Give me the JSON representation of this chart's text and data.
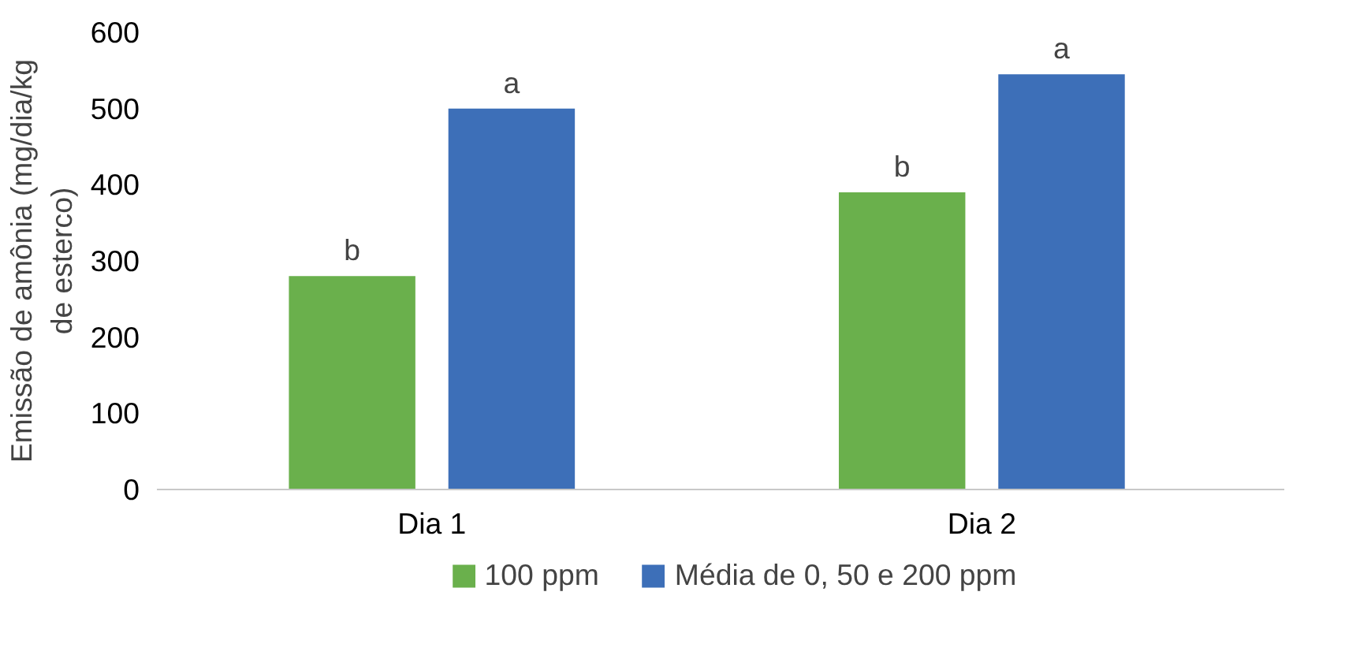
{
  "chart_data": {
    "type": "bar",
    "ylabel": "Emissão de amônia (mg/dia/kg de esterco)",
    "categories": [
      "Dia 1",
      "Dia 2"
    ],
    "series": [
      {
        "name": "100 ppm",
        "color": "#6ab04c",
        "values": [
          280,
          390
        ]
      },
      {
        "name": "Média de 0, 50 e 200 ppm",
        "color": "#3d6fb8",
        "values": [
          500,
          545
        ]
      }
    ],
    "ylim": [
      0,
      600
    ],
    "yticks": [
      0,
      100,
      200,
      300,
      400,
      500,
      600
    ],
    "grid": false,
    "legend": "bottom",
    "annotations": [
      "b",
      "a",
      "b",
      "a"
    ]
  }
}
